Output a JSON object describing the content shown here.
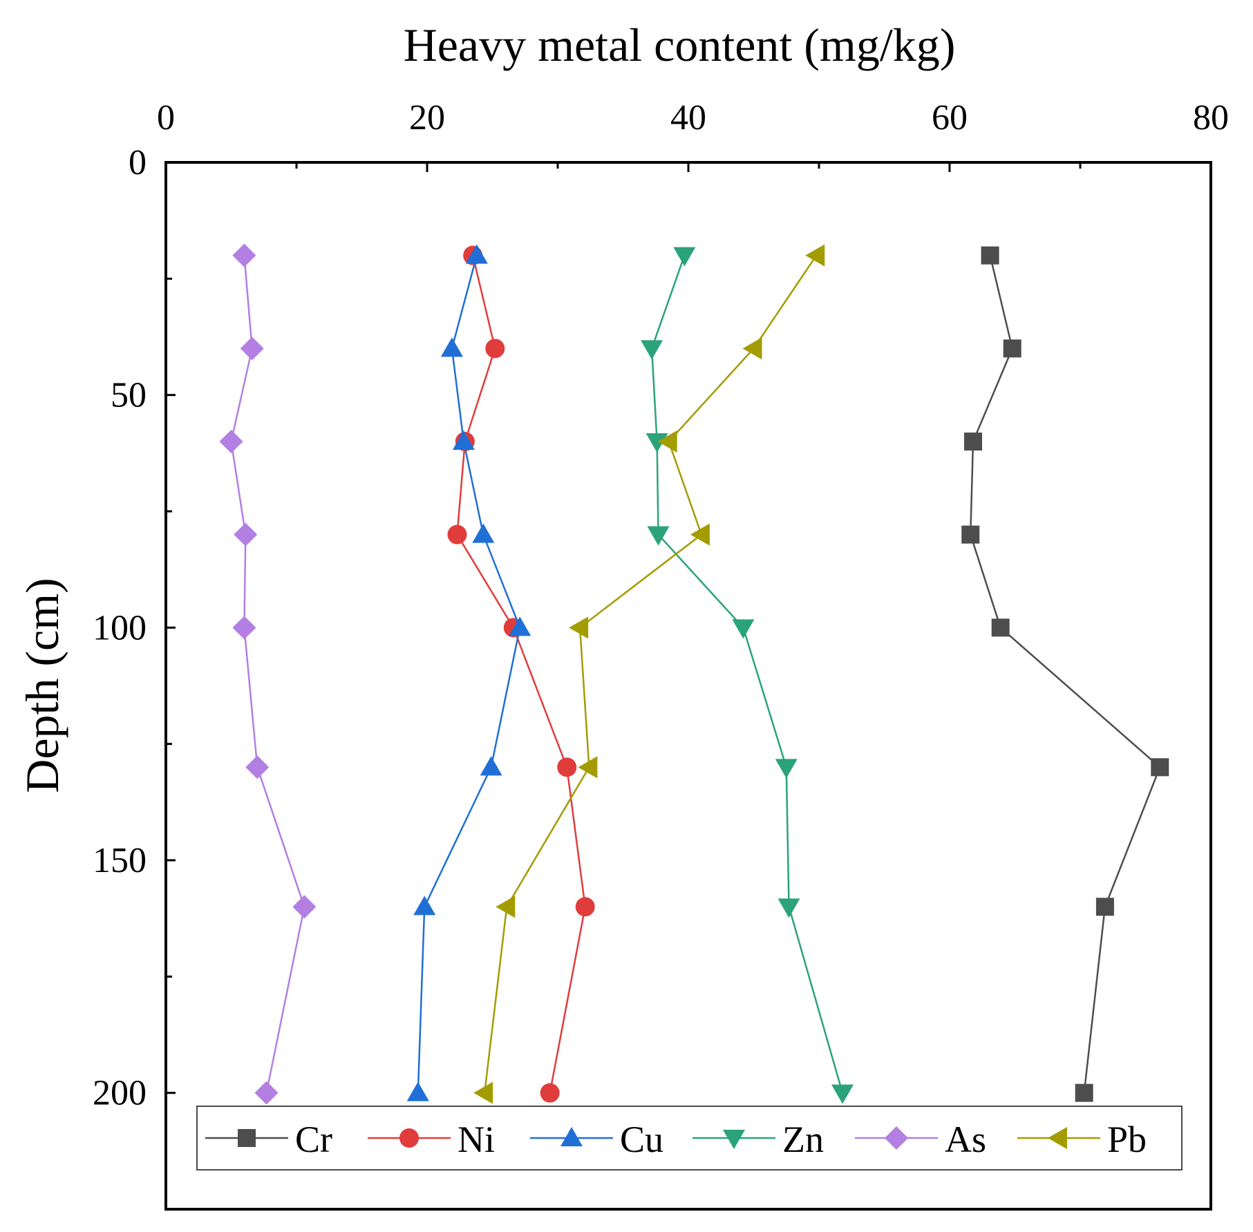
{
  "chart_data": {
    "type": "line",
    "title": "",
    "xlabel": "Heavy metal content (mg/kg)",
    "ylabel": "Depth (cm)",
    "x_axis_position": "top",
    "y_axis_inverted": true,
    "xlim": [
      0,
      80
    ],
    "ylim": [
      0,
      225
    ],
    "x_ticks": [
      0,
      20,
      40,
      60,
      80
    ],
    "x_tick_labels": [
      "0",
      "20",
      "40",
      "60",
      "80"
    ],
    "y_ticks": [
      0,
      50,
      100,
      150,
      200
    ],
    "y_tick_labels": [
      "0",
      "50",
      "100",
      "150",
      "200"
    ],
    "depths": [
      20,
      40,
      60,
      80,
      100,
      130,
      160,
      200
    ],
    "legend_position": "bottom-inside",
    "series": [
      {
        "name": "Cr",
        "marker": "square",
        "color": "#4d4d4d",
        "values": [
          63.1,
          64.8,
          61.8,
          61.6,
          63.9,
          76.1,
          71.9,
          70.3
        ]
      },
      {
        "name": "Ni",
        "marker": "circle",
        "color": "#e03c3c",
        "values": [
          23.5,
          25.2,
          22.9,
          22.3,
          26.6,
          30.7,
          32.1,
          29.4
        ]
      },
      {
        "name": "Cu",
        "marker": "triangle-up",
        "color": "#1f6fd6",
        "values": [
          23.8,
          21.9,
          22.8,
          24.3,
          27.1,
          24.9,
          19.8,
          19.3
        ]
      },
      {
        "name": "Zn",
        "marker": "triangle-down",
        "color": "#2aa37a",
        "values": [
          39.7,
          37.2,
          37.6,
          37.7,
          44.2,
          47.5,
          47.7,
          51.8
        ]
      },
      {
        "name": "As",
        "marker": "diamond",
        "color": "#b37fe3",
        "values": [
          6.0,
          6.6,
          5.0,
          6.1,
          6.0,
          7.0,
          10.6,
          7.7
        ]
      },
      {
        "name": "Pb",
        "marker": "triangle-left",
        "color": "#a39c00",
        "values": [
          49.8,
          45.0,
          38.5,
          41.0,
          31.7,
          32.4,
          26.1,
          24.4
        ]
      }
    ]
  }
}
